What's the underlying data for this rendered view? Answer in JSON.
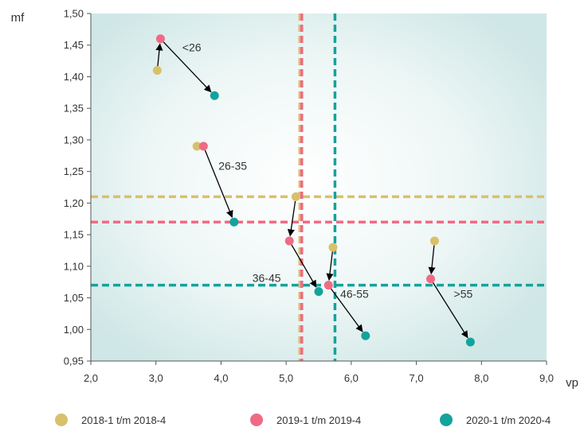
{
  "chart_data": {
    "type": "scatter",
    "xlabel": "vp",
    "ylabel": "mf",
    "xlim": [
      2.0,
      9.0
    ],
    "ylim": [
      0.95,
      1.5
    ],
    "xticks": [
      "2,0",
      "3,0",
      "4,0",
      "5,0",
      "6,0",
      "7,0",
      "8,0",
      "9,0"
    ],
    "yticks": [
      "0,95",
      "1,00",
      "1,05",
      "1,10",
      "1,15",
      "1,20",
      "1,25",
      "1,30",
      "1,35",
      "1,40",
      "1,45",
      "1,50"
    ],
    "grid": false,
    "legend_position": "bottom",
    "series": [
      {
        "name": "2018-1 t/m 2018-4",
        "color": "#d9c06b",
        "points": [
          {
            "group": "<26",
            "x": 3.02,
            "y": 1.41
          },
          {
            "group": "26-35",
            "x": 3.63,
            "y": 1.29
          },
          {
            "group": "36-45",
            "x": 5.15,
            "y": 1.21
          },
          {
            "group": "46-55",
            "x": 5.72,
            "y": 1.13
          },
          {
            "group": ">55",
            "x": 7.28,
            "y": 1.14
          }
        ]
      },
      {
        "name": "2019-1 t/m 2019-4",
        "color": "#ef6b84",
        "points": [
          {
            "group": "<26",
            "x": 3.07,
            "y": 1.46
          },
          {
            "group": "26-35",
            "x": 3.73,
            "y": 1.29
          },
          {
            "group": "36-45",
            "x": 5.05,
            "y": 1.14
          },
          {
            "group": "46-55",
            "x": 5.65,
            "y": 1.07
          },
          {
            "group": ">55",
            "x": 7.22,
            "y": 1.08
          }
        ]
      },
      {
        "name": "2020-1 t/m 2020-4",
        "color": "#14a39c",
        "points": [
          {
            "group": "<26",
            "x": 3.9,
            "y": 1.37
          },
          {
            "group": "26-35",
            "x": 4.2,
            "y": 1.17
          },
          {
            "group": "36-45",
            "x": 5.5,
            "y": 1.06
          },
          {
            "group": "46-55",
            "x": 6.22,
            "y": 0.99
          },
          {
            "group": ">55",
            "x": 7.83,
            "y": 0.98
          }
        ]
      }
    ],
    "reference_lines": [
      {
        "series": "2018-1 t/m 2018-4",
        "orientation": "horizontal",
        "value": 1.21
      },
      {
        "series": "2019-1 t/m 2019-4",
        "orientation": "horizontal",
        "value": 1.17
      },
      {
        "series": "2020-1 t/m 2020-4",
        "orientation": "horizontal",
        "value": 1.07
      },
      {
        "series": "2018-1 t/m 2018-4",
        "orientation": "vertical",
        "value": 5.21
      },
      {
        "series": "2019-1 t/m 2019-4",
        "orientation": "vertical",
        "value": 5.24
      },
      {
        "series": "2020-1 t/m 2020-4",
        "orientation": "vertical",
        "value": 5.75
      }
    ],
    "group_labels": [
      {
        "text": "<26",
        "x": 3.55,
        "y": 1.44
      },
      {
        "text": "26-35",
        "x": 4.18,
        "y": 1.253
      },
      {
        "text": "36-45",
        "x": 4.7,
        "y": 1.075
      },
      {
        "text": "46-55",
        "x": 6.05,
        "y": 1.05
      },
      {
        "text": ">55",
        "x": 7.72,
        "y": 1.05
      }
    ]
  }
}
